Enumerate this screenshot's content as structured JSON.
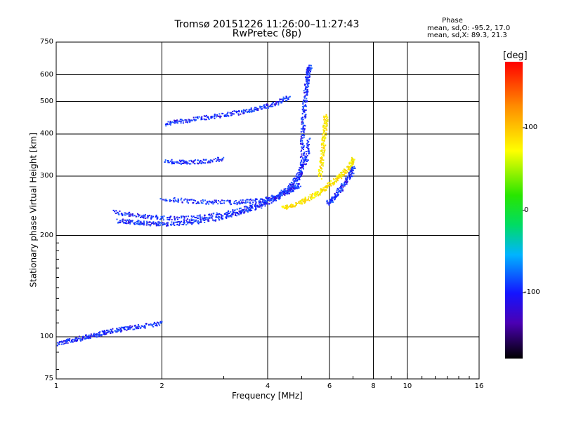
{
  "chart_data": {
    "type": "scatter",
    "title": "Tromsø 20151226 11:26:00–11:27:43",
    "subtitle": "RwPretec (8p)",
    "xlabel": "Frequency [MHz]",
    "ylabel": "Stationary phase Virtual Height [km]",
    "x_scale": "log",
    "y_scale": "log",
    "xlim": [
      1,
      16
    ],
    "ylim": [
      75,
      750
    ],
    "x_ticks": [
      1,
      2,
      4,
      6,
      8,
      10,
      16
    ],
    "y_ticks": [
      75,
      100,
      200,
      300,
      400,
      500,
      600,
      750
    ],
    "x_gridlines": [
      2,
      4,
      6,
      8,
      10
    ],
    "y_gridlines": [
      100,
      200,
      300,
      400,
      500,
      600
    ],
    "grid": true,
    "colorbar": {
      "label": "[deg]",
      "ticks": [
        100,
        0,
        -100
      ],
      "range": [
        -180,
        180
      ],
      "colormap": "rainbow"
    },
    "stats": {
      "header": "Phase",
      "lines": [
        "mean, sd,O: -95.2, 17.0",
        "mean, sd,X:  89.3, 21.3"
      ]
    },
    "traces": [
      {
        "x": [
          1.0,
          1.1,
          1.2,
          1.3,
          1.4,
          1.55,
          1.75,
          2.0
        ],
        "y": [
          96,
          98,
          100,
          102,
          104,
          106,
          108,
          110
        ],
        "phase": -100
      },
      {
        "x": [
          1.5,
          1.65,
          1.8,
          2.0,
          2.3,
          2.6,
          3.0,
          3.4,
          3.8,
          4.2,
          4.6,
          4.9,
          5.05
        ],
        "y": [
          222,
          220,
          218,
          217,
          218,
          222,
          228,
          236,
          246,
          258,
          275,
          305,
          340
        ],
        "phase": -100
      },
      {
        "x": [
          1.45,
          1.7,
          2.0,
          2.4,
          2.8,
          3.3,
          3.8,
          4.3,
          4.8,
          5.1,
          5.25
        ],
        "y": [
          235,
          230,
          226,
          226,
          230,
          238,
          250,
          265,
          290,
          330,
          390
        ],
        "phase": -110
      },
      {
        "x": [
          2.0,
          2.4,
          2.8,
          3.3,
          3.8,
          4.2,
          4.6,
          4.9
        ],
        "y": [
          258,
          254,
          252,
          252,
          256,
          262,
          272,
          285
        ],
        "phase": -90
      },
      {
        "x": [
          2.05,
          2.3,
          2.6,
          3.0
        ],
        "y": [
          333,
          331,
          333,
          340
        ],
        "phase": -100
      },
      {
        "x": [
          2.05,
          2.3,
          2.6,
          3.0,
          3.4,
          3.8,
          4.2,
          4.6
        ],
        "y": [
          430,
          440,
          448,
          458,
          468,
          480,
          495,
          520
        ],
        "phase": -100
      },
      {
        "x": [
          5.0,
          5.0,
          5.05,
          5.1,
          5.15,
          5.2,
          5.25
        ],
        "y": [
          340,
          400,
          460,
          520,
          570,
          610,
          640
        ],
        "phase": -120
      },
      {
        "x": [
          4.4,
          4.8,
          5.2,
          5.6,
          6.0,
          6.4,
          6.8,
          7.0
        ],
        "y": [
          242,
          248,
          258,
          270,
          285,
          300,
          320,
          340
        ],
        "phase": 100
      },
      {
        "x": [
          5.6,
          5.7,
          5.75,
          5.8,
          5.85
        ],
        "y": [
          300,
          340,
          380,
          420,
          460
        ],
        "phase": 95
      },
      {
        "x": [
          5.9,
          6.2,
          6.5,
          6.8,
          7.0
        ],
        "y": [
          250,
          262,
          280,
          300,
          320
        ],
        "phase": -100
      }
    ]
  }
}
